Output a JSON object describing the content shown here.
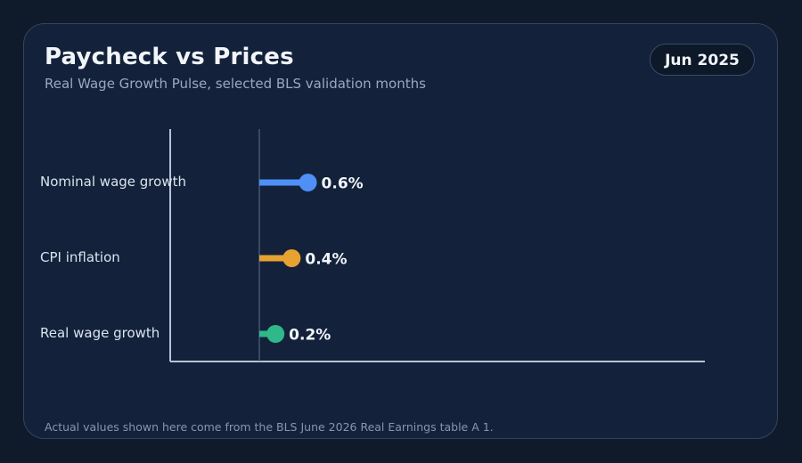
{
  "header": {
    "title": "Paycheck vs Prices",
    "subtitle": "Real Wage Growth Pulse, selected BLS validation months",
    "badge": "Jun 2025"
  },
  "footnote": "Actual values shown here come from the BLS June 2026 Real Earnings table A 1.",
  "colors": {
    "nominal": "#4f8ff7",
    "cpi": "#e8a232",
    "real": "#2fb88a",
    "axis": "#b7c2d3",
    "zero_line": "#5d6f8a"
  },
  "chart_data": {
    "type": "bar",
    "orientation": "horizontal",
    "style": "lollipop",
    "categories": [
      "Nominal wage growth",
      "CPI inflation",
      "Real wage growth"
    ],
    "values": [
      0.6,
      0.4,
      0.2
    ],
    "value_labels": [
      "0.6%",
      "0.4%",
      "0.2%"
    ],
    "series_colors": [
      "#4f8ff7",
      "#e8a232",
      "#2fb88a"
    ],
    "xlim": [
      -1.1,
      5.5
    ],
    "grid": false,
    "legend": "none"
  }
}
